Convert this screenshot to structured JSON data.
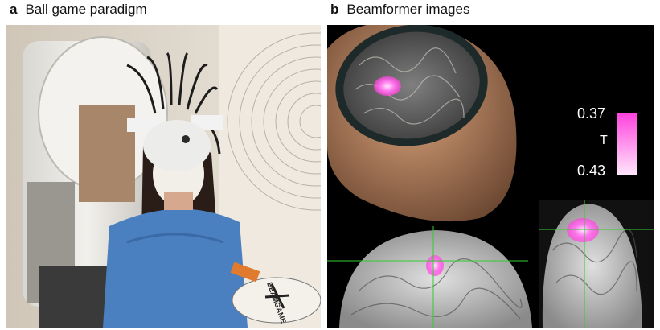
{
  "panels": {
    "a": {
      "letter": "a",
      "title": "Ball game paradigm"
    },
    "b": {
      "letter": "b",
      "title": "Beamformer images"
    }
  },
  "colorbar": {
    "top_value": "0.37",
    "bottom_value": "0.43",
    "symbol": "T",
    "gradient_top": "#ff44dd",
    "gradient_bottom": "#ffe6fb"
  },
  "paddle": {
    "text": "BEAMGAME"
  },
  "colors": {
    "highlight": "#ff55ee",
    "crosshair": "#33cc33"
  }
}
